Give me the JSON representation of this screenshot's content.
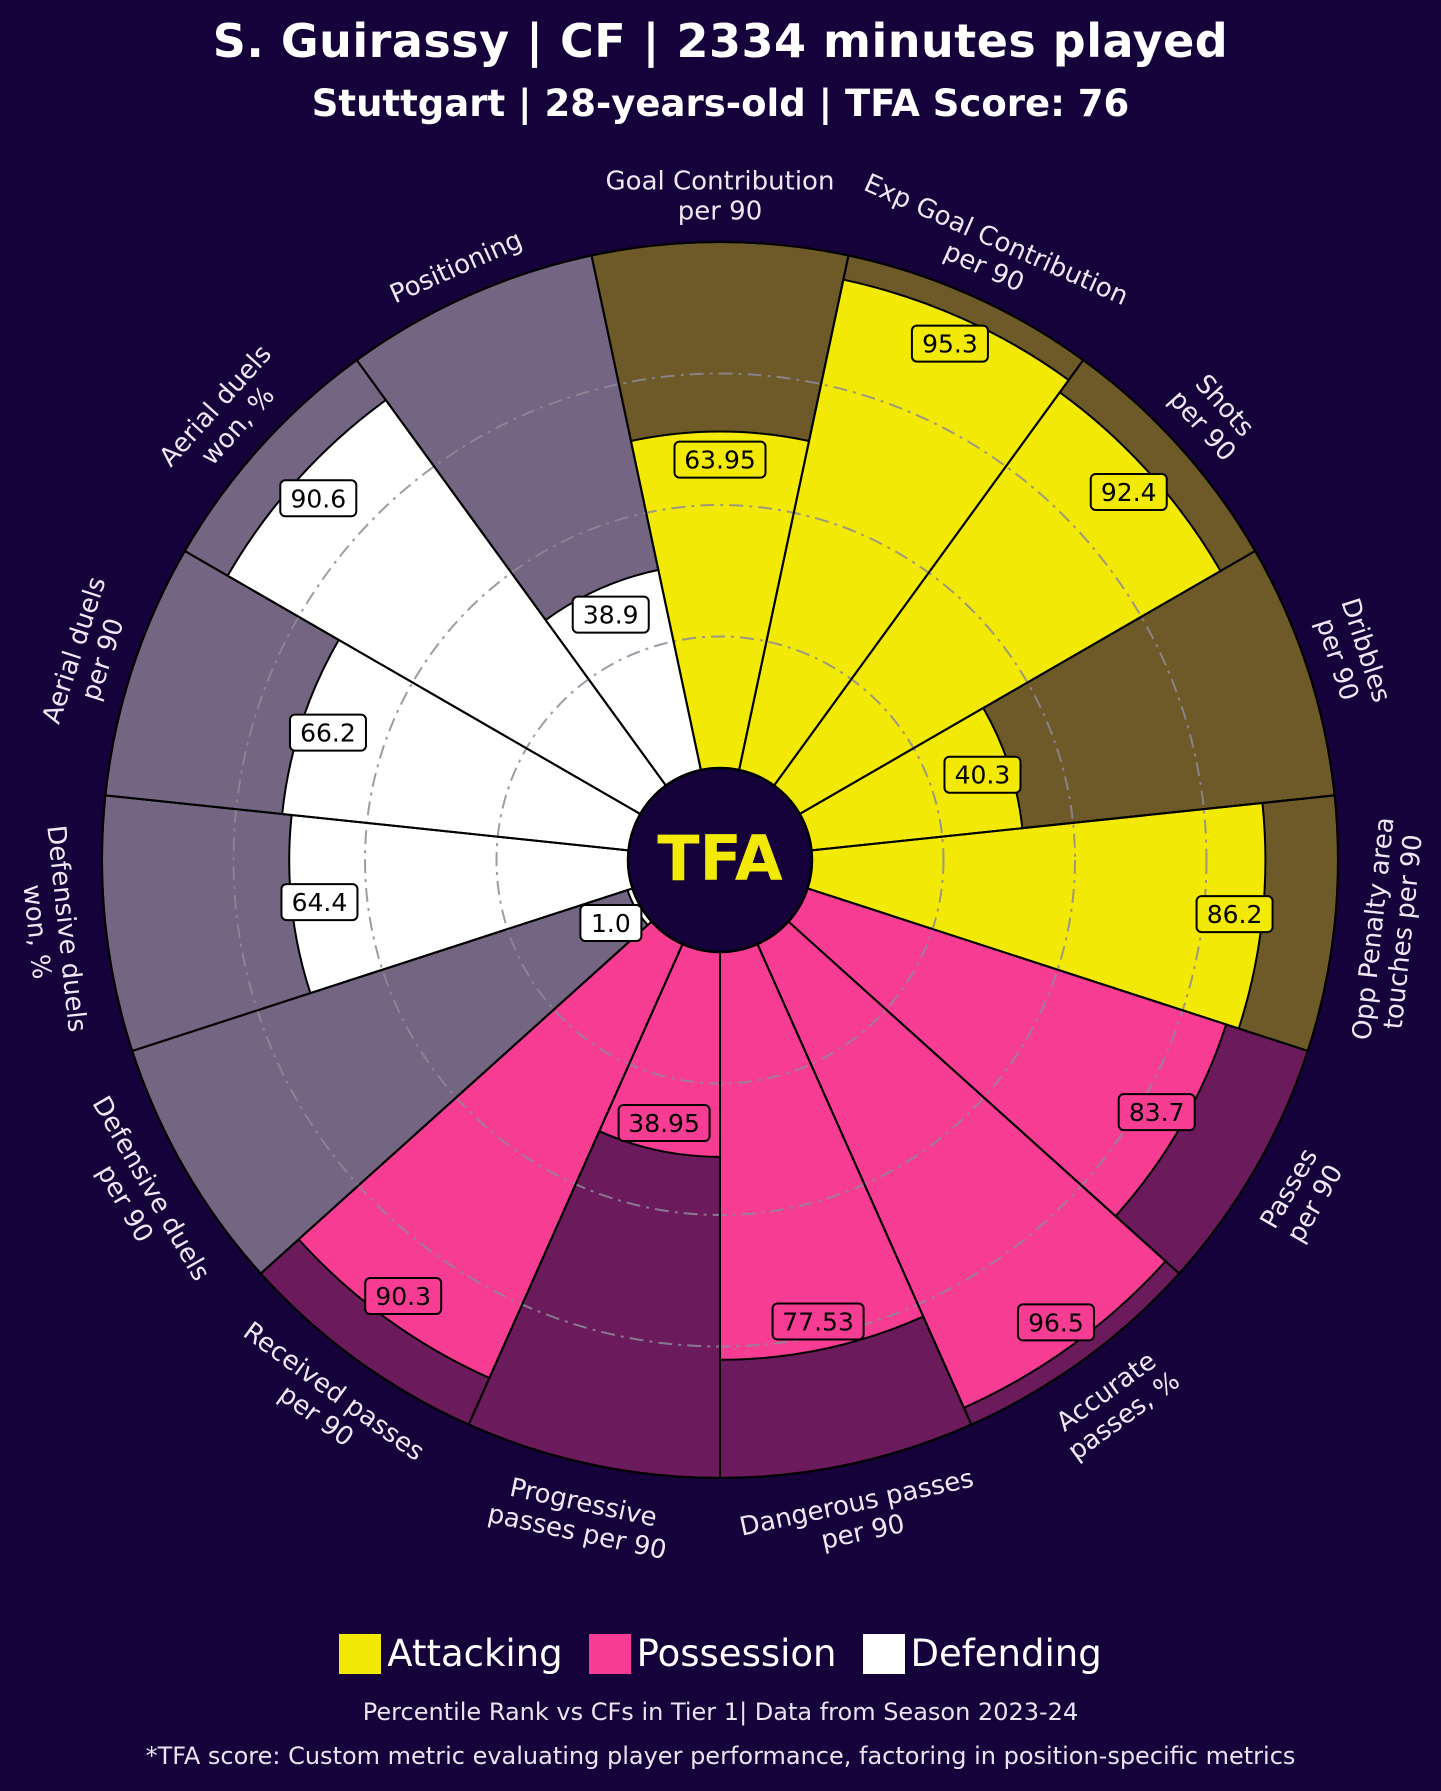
{
  "header": {
    "title": "S. Guirassy | CF | 2334 minutes played",
    "subtitle": "Stuttgart | 28-years-old | TFA Score: 76"
  },
  "colors": {
    "background": "#15023a",
    "attacking": "#f2e905",
    "attacking_bg": "#6d5a28",
    "possession": "#f73c94",
    "possession_bg": "#6b1a5c",
    "defending": "#ffffff",
    "defending_bg": "#746583",
    "logo": "#f2e905"
  },
  "logo_text": "TFA",
  "legend": [
    {
      "label": "Attacking",
      "color": "#f2e905"
    },
    {
      "label": "Possession",
      "color": "#f73c94"
    },
    {
      "label": "Defending",
      "color": "#ffffff"
    }
  ],
  "footnotes": {
    "line1": "Percentile Rank vs CFs in Tier 1| Data from Season 2023-24",
    "line2": "*TFA score: Custom metric evaluating player performance, factoring in position-specific metrics"
  },
  "chart_data": {
    "type": "polar-bar",
    "title": "S. Guirassy | CF | 2334 minutes played",
    "scale": [
      0,
      100
    ],
    "grid_rings": [
      25,
      50,
      75
    ],
    "metrics": [
      {
        "label": [
          "Goal Contribution",
          "per 90"
        ],
        "value": 63.95,
        "group": "Attacking"
      },
      {
        "label": [
          "Exp Goal Contribution",
          "per 90"
        ],
        "value": 95.3,
        "group": "Attacking"
      },
      {
        "label": [
          "Shots",
          "per 90"
        ],
        "value": 92.4,
        "group": "Attacking"
      },
      {
        "label": [
          "Dribbles",
          "per 90"
        ],
        "value": 40.3,
        "group": "Attacking"
      },
      {
        "label": [
          "Opp Penalty area",
          "touches per 90"
        ],
        "value": 86.2,
        "group": "Attacking"
      },
      {
        "label": [
          "Passes",
          "per 90"
        ],
        "value": 83.7,
        "group": "Possession"
      },
      {
        "label": [
          "Accurate",
          "passes, %"
        ],
        "value": 96.5,
        "group": "Possession"
      },
      {
        "label": [
          "Dangerous passes",
          "per 90"
        ],
        "value": 77.53,
        "group": "Possession"
      },
      {
        "label": [
          "Progressive",
          "passes per 90"
        ],
        "value": 38.95,
        "group": "Possession"
      },
      {
        "label": [
          "Received passes",
          "per 90"
        ],
        "value": 90.3,
        "group": "Possession"
      },
      {
        "label": [
          "Defensive duels",
          "per 90"
        ],
        "value": 1.0,
        "group": "Defending"
      },
      {
        "label": [
          "Defensive duels",
          "won, %"
        ],
        "value": 64.4,
        "group": "Defending"
      },
      {
        "label": [
          "Aerial duels",
          "per 90"
        ],
        "value": 66.2,
        "group": "Defending"
      },
      {
        "label": [
          "Aerial duels",
          "won, %"
        ],
        "value": 90.6,
        "group": "Defending"
      },
      {
        "label": [
          "Positioning"
        ],
        "value": 38.9,
        "group": "Defending"
      }
    ]
  }
}
